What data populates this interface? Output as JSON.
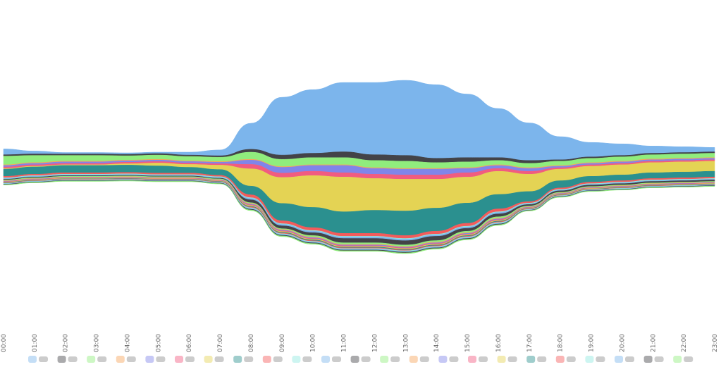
{
  "chart_data": {
    "type": "area",
    "layout": "streamgraph",
    "title": "",
    "xlabel": "",
    "ylabel": "",
    "x": [
      "00:00",
      "01:00",
      "02:00",
      "03:00",
      "04:00",
      "05:00",
      "06:00",
      "07:00",
      "08:00",
      "09:00",
      "10:00",
      "11:00",
      "12:00",
      "13:00",
      "14:00",
      "15:00",
      "16:00",
      "17:00",
      "18:00",
      "19:00",
      "20:00",
      "21:00",
      "22:00",
      "23:00"
    ],
    "grid": false,
    "legend": "bottom",
    "series": [
      {
        "color": "#7cb5ec",
        "values": [
          4,
          2,
          1,
          1,
          1,
          1,
          2,
          4,
          18,
          40,
          44,
          48,
          50,
          52,
          51,
          44,
          34,
          26,
          16,
          10,
          8,
          5,
          4,
          3
        ]
      },
      {
        "color": "#434348",
        "values": [
          1,
          1,
          1,
          1,
          1,
          1,
          1,
          1,
          2,
          3,
          3,
          4,
          4,
          4,
          3,
          3,
          2,
          2,
          1,
          1,
          1,
          1,
          1,
          1
        ]
      },
      {
        "color": "#90ed7d",
        "values": [
          6,
          5,
          4,
          4,
          3,
          3,
          3,
          3,
          5,
          5,
          5,
          5,
          5,
          5,
          4,
          4,
          3,
          3,
          3,
          3,
          3,
          3,
          3,
          3
        ]
      },
      {
        "color": "#f7a35c",
        "values": [
          0.5,
          0.5,
          0.5,
          0.5,
          0.5,
          0.5,
          0.5,
          0.5,
          0.5,
          0.5,
          0.5,
          0.5,
          0.5,
          0.5,
          0.5,
          0.5,
          0.5,
          0.5,
          0.5,
          0.5,
          0.5,
          0.5,
          0.5,
          0.5
        ]
      },
      {
        "color": "#8085e9",
        "values": [
          1,
          1,
          1,
          1,
          1,
          1,
          1,
          1,
          3,
          4,
          4,
          5,
          4,
          4,
          4,
          3,
          2,
          2,
          1,
          1,
          1,
          1,
          1,
          1
        ]
      },
      {
        "color": "#f15c80",
        "values": [
          1,
          1,
          1,
          1,
          1,
          1,
          1,
          1,
          3,
          3,
          3,
          3,
          3,
          3,
          3,
          3,
          2,
          2,
          1,
          1,
          1,
          1,
          1,
          1
        ]
      },
      {
        "color": "#e4d354",
        "values": [
          0.5,
          0.5,
          0.5,
          0.5,
          1,
          2,
          2,
          3,
          12,
          18,
          22,
          24,
          22,
          22,
          20,
          18,
          16,
          12,
          8,
          7,
          7,
          7,
          7,
          7
        ]
      },
      {
        "color": "#2b908f",
        "values": [
          5,
          5,
          5,
          5,
          5,
          5,
          4,
          4,
          6,
          12,
          14,
          15,
          16,
          17,
          16,
          14,
          10,
          7,
          5,
          4,
          4,
          4,
          4,
          4
        ]
      },
      {
        "color": "#f45b5b",
        "values": [
          1,
          1,
          1,
          1,
          1,
          1,
          1,
          1,
          2,
          2,
          2,
          2,
          2,
          2,
          2,
          2,
          2,
          1,
          1,
          1,
          1,
          1,
          1,
          1
        ]
      },
      {
        "color": "#91e8e1",
        "values": [
          0.5,
          0.5,
          0.5,
          0.5,
          0.5,
          0.5,
          0.5,
          0.5,
          0.5,
          0.5,
          0.5,
          0.5,
          0.5,
          0.5,
          0.5,
          0.5,
          0.5,
          0.5,
          0.5,
          0.5,
          0.5,
          0.5,
          0.5,
          0.5
        ]
      },
      {
        "color": "#7cb5ec",
        "values": [
          0.5,
          0.5,
          0.5,
          0.5,
          0.5,
          0.5,
          0.5,
          0.5,
          1,
          1,
          1,
          1,
          1,
          1,
          1,
          1,
          1,
          0.5,
          0.5,
          0.5,
          0.5,
          0.5,
          0.5,
          0.5
        ]
      },
      {
        "color": "#434348",
        "values": [
          0.5,
          0.5,
          0.5,
          0.5,
          0.5,
          0.5,
          0.5,
          0.5,
          2,
          2,
          2,
          3,
          3,
          3,
          3,
          2,
          2,
          1,
          1,
          1,
          1,
          1,
          1,
          1
        ]
      },
      {
        "color": "#90ed7d",
        "values": [
          0.5,
          0.5,
          0.5,
          0.5,
          0.5,
          0.5,
          0.5,
          0.5,
          0.5,
          0.5,
          1,
          1,
          1,
          1,
          1,
          1,
          1,
          0.5,
          0.5,
          0.5,
          0.5,
          0.5,
          0.5,
          0.5
        ]
      },
      {
        "color": "#f7a35c",
        "values": [
          0.3,
          0.3,
          0.3,
          0.3,
          0.3,
          0.3,
          0.3,
          0.3,
          0.5,
          0.5,
          0.5,
          0.5,
          0.5,
          0.5,
          0.5,
          0.5,
          0.5,
          0.3,
          0.3,
          0.3,
          0.3,
          0.3,
          0.3,
          0.3
        ]
      },
      {
        "color": "#8085e9",
        "values": [
          0.3,
          0.3,
          0.3,
          0.3,
          0.3,
          0.3,
          0.3,
          0.3,
          0.5,
          0.5,
          0.5,
          0.5,
          0.5,
          0.5,
          0.5,
          0.5,
          0.5,
          0.3,
          0.3,
          0.3,
          0.3,
          0.3,
          0.3,
          0.3
        ]
      },
      {
        "color": "#f15c80",
        "values": [
          0.3,
          0.3,
          0.3,
          0.3,
          0.3,
          0.3,
          0.3,
          0.3,
          0.5,
          0.5,
          0.5,
          0.5,
          0.5,
          0.5,
          0.5,
          0.5,
          0.5,
          0.3,
          0.3,
          0.3,
          0.3,
          0.3,
          0.3,
          0.3
        ]
      },
      {
        "color": "#e4d354",
        "values": [
          0.3,
          0.3,
          0.3,
          0.3,
          0.3,
          0.3,
          0.3,
          0.3,
          0.5,
          0.5,
          0.5,
          0.5,
          0.5,
          0.5,
          0.5,
          0.5,
          0.5,
          0.3,
          0.3,
          0.3,
          0.3,
          0.3,
          0.3,
          0.3
        ]
      },
      {
        "color": "#2b908f",
        "values": [
          0.3,
          0.3,
          0.3,
          0.3,
          0.3,
          0.3,
          0.3,
          0.3,
          0.5,
          0.5,
          0.5,
          0.5,
          0.5,
          0.5,
          0.5,
          0.5,
          0.5,
          0.3,
          0.3,
          0.3,
          0.3,
          0.3,
          0.3,
          0.3
        ]
      },
      {
        "color": "#f45b5b",
        "values": [
          0.3,
          0.3,
          0.3,
          0.3,
          0.3,
          0.3,
          0.3,
          0.3,
          0.5,
          0.5,
          0.5,
          0.5,
          0.5,
          0.5,
          0.5,
          0.5,
          0.5,
          0.3,
          0.3,
          0.3,
          0.3,
          0.3,
          0.3,
          0.3
        ]
      },
      {
        "color": "#91e8e1",
        "values": [
          0.3,
          0.3,
          0.3,
          0.3,
          0.3,
          0.3,
          0.3,
          0.3,
          0.5,
          0.5,
          0.5,
          0.5,
          0.5,
          0.5,
          0.5,
          0.5,
          0.5,
          0.3,
          0.3,
          0.3,
          0.3,
          0.3,
          0.3,
          0.3
        ]
      },
      {
        "color": "#7cb5ec",
        "values": [
          0.3,
          0.3,
          0.3,
          0.3,
          0.3,
          0.3,
          0.3,
          0.3,
          0.5,
          0.5,
          0.5,
          0.5,
          0.5,
          0.5,
          0.5,
          0.5,
          0.5,
          0.3,
          0.3,
          0.3,
          0.3,
          0.3,
          0.3,
          0.3
        ]
      },
      {
        "color": "#434348",
        "values": [
          0.3,
          0.3,
          0.3,
          0.3,
          0.3,
          0.3,
          0.3,
          0.3,
          0.5,
          0.5,
          0.5,
          0.5,
          0.5,
          0.5,
          0.5,
          0.5,
          0.5,
          0.3,
          0.3,
          0.3,
          0.3,
          0.3,
          0.3,
          0.3
        ]
      },
      {
        "color": "#90ed7d",
        "values": [
          0.3,
          0.3,
          0.3,
          0.3,
          0.3,
          0.3,
          0.3,
          0.3,
          0.5,
          0.5,
          0.5,
          0.5,
          0.5,
          0.5,
          0.5,
          0.5,
          0.5,
          0.3,
          0.3,
          0.3,
          0.3,
          0.3,
          0.3,
          0.3
        ]
      }
    ]
  }
}
